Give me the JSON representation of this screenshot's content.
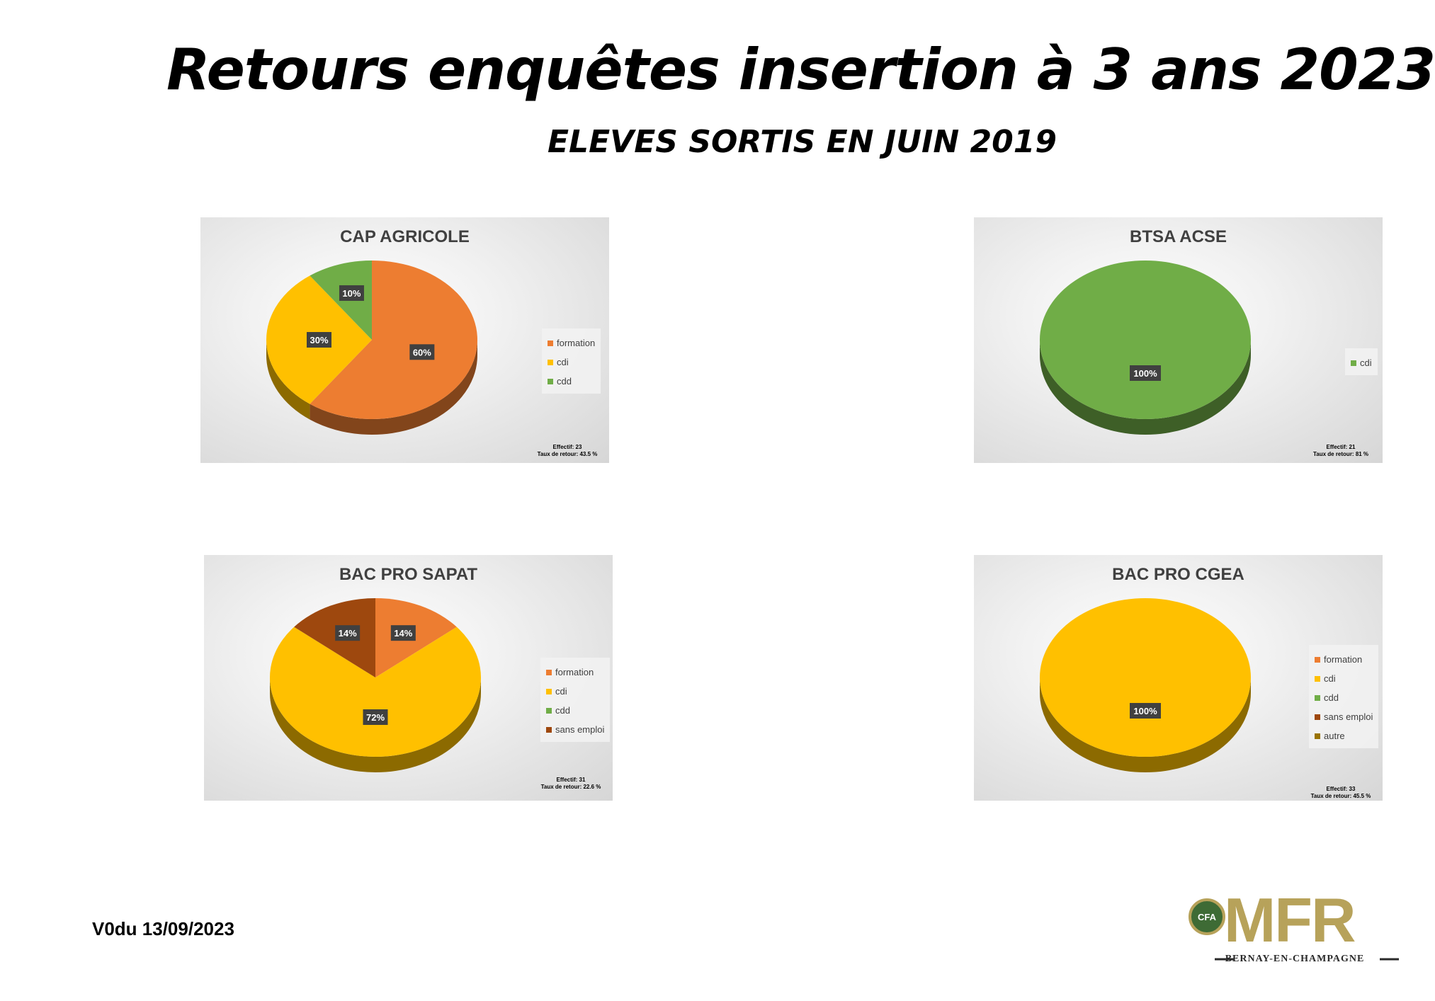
{
  "header": {
    "title": "Retours enquêtes insertion à  3 ans 2023",
    "subtitle": "ELEVES SORTIS EN JUIN 2019"
  },
  "footer": {
    "version": "V0du 13/09/2023"
  },
  "logo": {
    "badge": "CFA",
    "letters": "MFR",
    "subtitle": "BERNAY-EN-CHAMPAGNE",
    "gold": "#b7a25a",
    "green": "#3e6b35"
  },
  "chart_data": [
    {
      "type": "pie",
      "title": "CAP AGRICOLE",
      "labels": [
        "formation",
        "cdi",
        "cdd"
      ],
      "values": [
        60,
        30,
        10
      ],
      "data_labels": [
        "60%",
        "30%",
        "10%"
      ],
      "colors": [
        "#ed7d31",
        "#ffc000",
        "#70ad47"
      ],
      "legend": [
        "formation",
        "cdi",
        "cdd"
      ],
      "legend_colors": [
        "#ed7d31",
        "#ffc000",
        "#70ad47"
      ],
      "legend_position": "right",
      "note": [
        "Effectif: 23",
        "Taux de retour: 43.5 %"
      ]
    },
    {
      "type": "pie",
      "title": "BTSA ACSE",
      "labels": [
        "cdi"
      ],
      "values": [
        100
      ],
      "data_labels": [
        "100%"
      ],
      "colors": [
        "#70ad47"
      ],
      "legend": [
        "cdi"
      ],
      "legend_colors": [
        "#70ad47"
      ],
      "legend_position": "right",
      "note": [
        "Effectif: 21",
        "Taux de retour: 81 %"
      ]
    },
    {
      "type": "pie",
      "title": "BAC PRO SAPAT",
      "labels": [
        "formation",
        "cdi",
        "sans emploi"
      ],
      "values": [
        14,
        72,
        14
      ],
      "data_labels": [
        "14%",
        "72%",
        "14%"
      ],
      "colors": [
        "#ed7d31",
        "#ffc000",
        "#9e480e"
      ],
      "legend": [
        "formation",
        "cdi",
        "cdd",
        "sans emploi"
      ],
      "legend_colors": [
        "#ed7d31",
        "#ffc000",
        "#70ad47",
        "#9e480e"
      ],
      "legend_position": "right",
      "note": [
        "Effectif: 31",
        "Taux de retour: 22.6 %"
      ]
    },
    {
      "type": "pie",
      "title": "BAC PRO CGEA",
      "labels": [
        "cdi"
      ],
      "values": [
        100
      ],
      "data_labels": [
        "100%"
      ],
      "colors": [
        "#ffc000"
      ],
      "legend": [
        "formation",
        "cdi",
        "cdd",
        "sans emploi",
        "autre"
      ],
      "legend_colors": [
        "#ed7d31",
        "#ffc000",
        "#70ad47",
        "#9e480e",
        "#997300"
      ],
      "legend_position": "right",
      "note": [
        "Effectif: 33",
        "Taux de retour: 45.5 %"
      ]
    }
  ]
}
